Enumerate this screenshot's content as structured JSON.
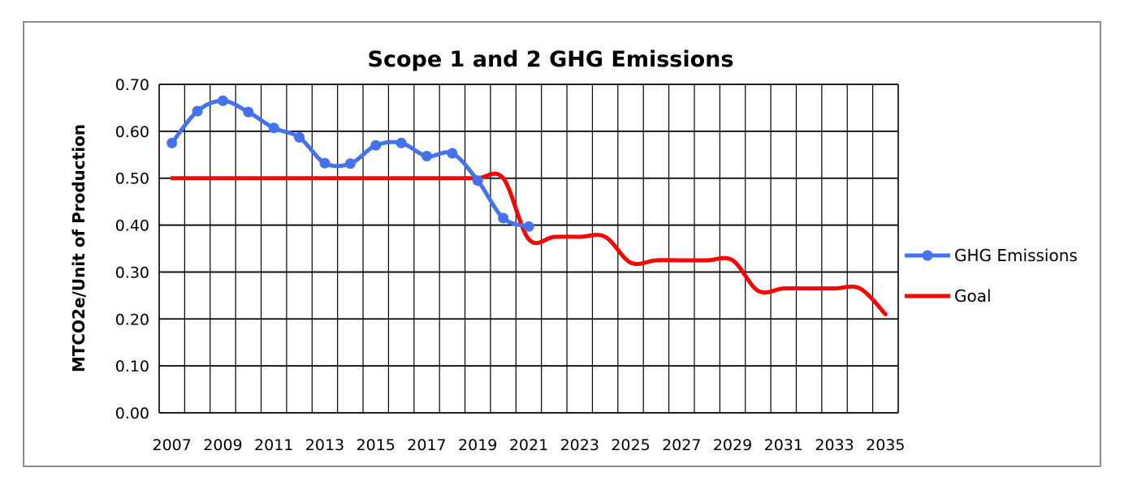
{
  "chart_data": {
    "type": "line",
    "title": "Scope 1 and 2 GHG Emissions",
    "xlabel": "",
    "ylabel": "MTCO2e/Unit of Production",
    "x": [
      2007,
      2008,
      2009,
      2010,
      2011,
      2012,
      2013,
      2014,
      2015,
      2016,
      2017,
      2018,
      2019,
      2020,
      2021,
      2022,
      2023,
      2024,
      2025,
      2026,
      2027,
      2028,
      2029,
      2030,
      2031,
      2032,
      2033,
      2034,
      2035
    ],
    "x_tick_labels": [
      "2007",
      "2009",
      "2011",
      "2013",
      "2015",
      "2017",
      "2019",
      "2021",
      "2023",
      "2025",
      "2027",
      "2029",
      "2031",
      "2033",
      "2035"
    ],
    "y_tick_labels": [
      "0.00",
      "0.10",
      "0.20",
      "0.30",
      "0.40",
      "0.50",
      "0.60",
      "0.70"
    ],
    "ylim": [
      0,
      0.7
    ],
    "xlim": [
      2007,
      2035
    ],
    "grid": true,
    "legend_position": "right",
    "series": [
      {
        "name": "GHG Emissions",
        "color": "#4472f0",
        "marker": "circle",
        "x": [
          2007,
          2008,
          2009,
          2010,
          2011,
          2012,
          2013,
          2014,
          2015,
          2016,
          2017,
          2018,
          2019,
          2020,
          2021
        ],
        "values": [
          0.575,
          0.643,
          0.665,
          0.641,
          0.607,
          0.587,
          0.532,
          0.531,
          0.57,
          0.575,
          0.547,
          0.553,
          0.495,
          0.415,
          0.397
        ]
      },
      {
        "name": "Goal",
        "color": "#ff0000",
        "marker": "none",
        "x": [
          2007,
          2008,
          2009,
          2010,
          2011,
          2012,
          2013,
          2014,
          2015,
          2016,
          2017,
          2018,
          2019,
          2020,
          2021,
          2022,
          2023,
          2024,
          2025,
          2026,
          2027,
          2028,
          2029,
          2030,
          2031,
          2032,
          2033,
          2034,
          2035
        ],
        "values": [
          0.5,
          0.5,
          0.5,
          0.5,
          0.5,
          0.5,
          0.5,
          0.5,
          0.5,
          0.5,
          0.5,
          0.5,
          0.5,
          0.5,
          0.37,
          0.375,
          0.375,
          0.375,
          0.32,
          0.325,
          0.325,
          0.325,
          0.325,
          0.26,
          0.265,
          0.265,
          0.265,
          0.265,
          0.21
        ]
      }
    ]
  }
}
